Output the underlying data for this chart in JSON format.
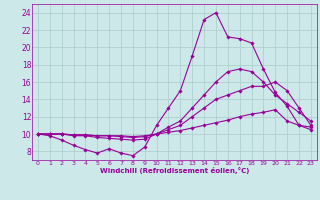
{
  "title": "",
  "xlabel": "Windchill (Refroidissement éolien,°C)",
  "bg_color": "#cce8e8",
  "grid_color": "#aacccc",
  "line_color": "#990099",
  "xmin": -0.5,
  "xmax": 23.5,
  "ymin": 7,
  "ymax": 25,
  "yticks": [
    8,
    10,
    12,
    14,
    16,
    18,
    20,
    22,
    24
  ],
  "xticks": [
    0,
    1,
    2,
    3,
    4,
    5,
    6,
    7,
    8,
    9,
    10,
    11,
    12,
    13,
    14,
    15,
    16,
    17,
    18,
    19,
    20,
    21,
    22,
    23
  ],
  "lines": [
    [
      10.0,
      9.8,
      9.3,
      8.7,
      8.2,
      7.8,
      8.3,
      7.8,
      7.5,
      8.5,
      11.0,
      13.0,
      15.0,
      19.0,
      23.2,
      24.0,
      21.2,
      21.0,
      20.5,
      17.5,
      14.8,
      13.2,
      11.0,
      10.5
    ],
    [
      10.0,
      10.0,
      10.0,
      9.8,
      9.8,
      9.6,
      9.5,
      9.4,
      9.3,
      9.4,
      10.0,
      10.8,
      11.5,
      13.0,
      14.5,
      16.0,
      17.2,
      17.5,
      17.2,
      16.0,
      14.5,
      13.5,
      12.5,
      11.5
    ],
    [
      10.0,
      10.0,
      10.0,
      9.9,
      9.9,
      9.8,
      9.8,
      9.7,
      9.6,
      9.7,
      10.0,
      10.5,
      11.0,
      12.0,
      13.0,
      14.0,
      14.5,
      15.0,
      15.5,
      15.5,
      16.0,
      15.0,
      13.0,
      11.0
    ],
    [
      10.0,
      10.0,
      10.0,
      9.9,
      9.9,
      9.8,
      9.8,
      9.8,
      9.7,
      9.8,
      10.0,
      10.2,
      10.4,
      10.7,
      11.0,
      11.3,
      11.6,
      12.0,
      12.3,
      12.5,
      12.8,
      11.5,
      11.0,
      10.8
    ]
  ]
}
